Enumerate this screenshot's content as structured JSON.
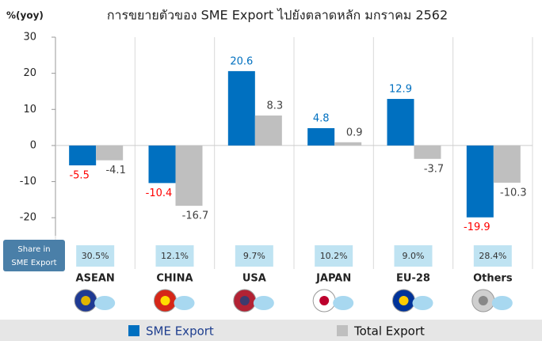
{
  "chart_data": {
    "type": "bar",
    "title": "การขยายตัวของ SME Export ไปยังตลาดหลัก มกราคม 2562",
    "y_label": "%(yoy)",
    "categories": [
      "ASEAN",
      "CHINA",
      "USA",
      "JAPAN",
      "EU-28",
      "Others"
    ],
    "series": [
      {
        "name": "SME Export",
        "color": "#0070c0",
        "label_color": "#0070c0",
        "negative_label_color": "#ff0000",
        "values": [
          -5.5,
          -10.4,
          20.6,
          4.8,
          12.9,
          -19.9
        ]
      },
      {
        "name": "Total Export",
        "color": "#bfbfbf",
        "label_color": "#404040",
        "negative_label_color": "#404040",
        "values": [
          -4.1,
          -16.7,
          8.3,
          0.9,
          -3.7,
          -10.3
        ]
      }
    ],
    "share_label": [
      "Share in",
      "SME Export"
    ],
    "shares": [
      "30.5%",
      "12.1%",
      "9.7%",
      "10.2%",
      "9.0%",
      "28.4%"
    ],
    "ylim": [
      -25,
      30
    ],
    "yticks": [
      -20,
      -10,
      0,
      10,
      20,
      30
    ],
    "grid": false
  }
}
